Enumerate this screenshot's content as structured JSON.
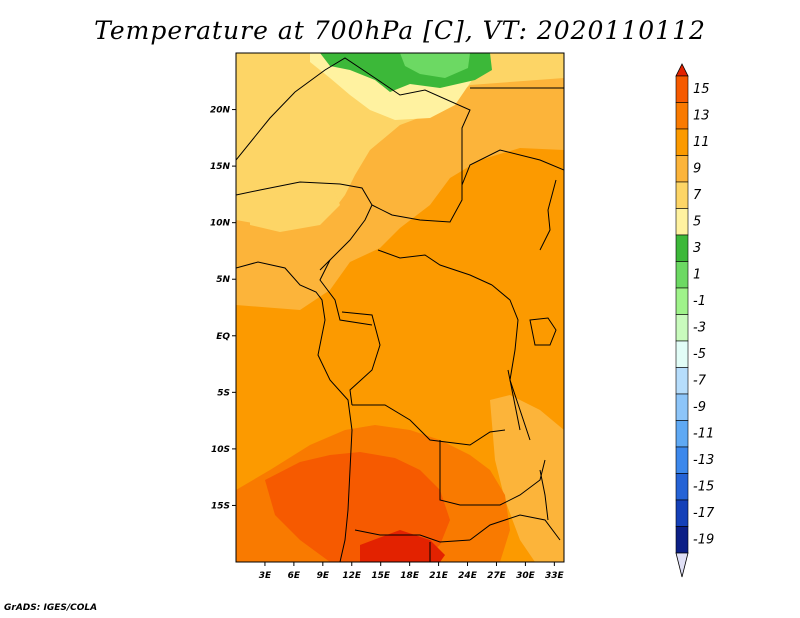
{
  "title": "Temperature at 700hPa [C], VT: 2020110112",
  "credit": "GrADS: IGES/COLA",
  "map": {
    "lat_range": [
      -20,
      25
    ],
    "lon_range": [
      0,
      34
    ],
    "lat_ticks": [
      {
        "value": 20,
        "label": "20N"
      },
      {
        "value": 15,
        "label": "15N"
      },
      {
        "value": 10,
        "label": "10N"
      },
      {
        "value": 5,
        "label": "5N"
      },
      {
        "value": 0,
        "label": "EQ"
      },
      {
        "value": -5,
        "label": "5S"
      },
      {
        "value": -10,
        "label": "10S"
      },
      {
        "value": -15,
        "label": "15S"
      }
    ],
    "lon_ticks": [
      {
        "value": 3,
        "label": "3E"
      },
      {
        "value": 6,
        "label": "6E"
      },
      {
        "value": 9,
        "label": "9E"
      },
      {
        "value": 12,
        "label": "12E"
      },
      {
        "value": 15,
        "label": "15E"
      },
      {
        "value": 18,
        "label": "18E"
      },
      {
        "value": 21,
        "label": "21E"
      },
      {
        "value": 24,
        "label": "24E"
      },
      {
        "value": 27,
        "label": "27E"
      },
      {
        "value": 30,
        "label": "30E"
      },
      {
        "value": 33,
        "label": "33E"
      }
    ]
  },
  "colorbar": {
    "levels": [
      "15",
      "13",
      "11",
      "9",
      "7",
      "5",
      "3",
      "1",
      "-1",
      "-3",
      "-5",
      "-7",
      "-9",
      "-11",
      "-13",
      "-15",
      "-17",
      "-19"
    ],
    "colors": [
      "#e32200",
      "#f65a00",
      "#f97a00",
      "#fc9a00",
      "#fcb43a",
      "#fdd566",
      "#fff2a0",
      "#3cb839",
      "#6cd963",
      "#9ff38a",
      "#c9fbbd",
      "#e2fdf7",
      "#b6ddfc",
      "#8dc5f9",
      "#5fa9f4",
      "#3c88ec",
      "#2563d6",
      "#1440b8",
      "#0c1f86",
      "#e0e0f6"
    ]
  }
}
